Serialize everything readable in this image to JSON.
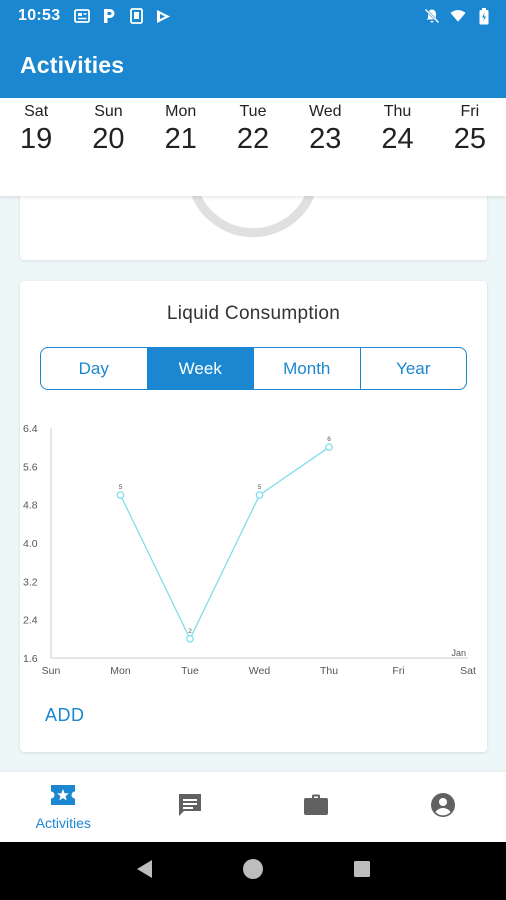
{
  "status_bar": {
    "time": "10:53",
    "left_icons": [
      "news-icon",
      "parking-icon",
      "sim-icon",
      "play-store-icon"
    ],
    "right_icons": [
      "notifications-off-icon",
      "wifi-icon",
      "battery-icon"
    ]
  },
  "app_bar": {
    "title": "Activities"
  },
  "week": {
    "days": [
      {
        "name": "Sat",
        "date": "19"
      },
      {
        "name": "Sun",
        "date": "20"
      },
      {
        "name": "Mon",
        "date": "21"
      },
      {
        "name": "Tue",
        "date": "22"
      },
      {
        "name": "Wed",
        "date": "23"
      },
      {
        "name": "Thu",
        "date": "24"
      },
      {
        "name": "Fri",
        "date": "25"
      }
    ]
  },
  "liquid_card": {
    "title": "Liquid Consumption",
    "tabs": [
      "Day",
      "Week",
      "Month",
      "Year"
    ],
    "selected_tab": "Week",
    "add_label": "ADD"
  },
  "chart_data": {
    "type": "line",
    "categories": [
      "Sun",
      "Mon",
      "Tue",
      "Wed",
      "Thu",
      "Fri",
      "Sat"
    ],
    "series": [
      {
        "values": [
          null,
          5,
          2,
          5,
          6,
          null,
          null
        ]
      }
    ],
    "point_labels": [
      "",
      "5",
      "2",
      "5",
      "6",
      "",
      ""
    ],
    "y_ticks": [
      "6.4",
      "5.6",
      "4.8",
      "4.0",
      "3.2",
      "2.4",
      "1.6"
    ],
    "ylim": [
      1.6,
      6.4
    ],
    "annotation": "Jan",
    "colors": {
      "line": "#80deea",
      "axis": "#cccccc",
      "label": "#555555"
    }
  },
  "bottom_nav": {
    "items": [
      {
        "label": "Activities",
        "icon": "ticket-star-icon",
        "active": true
      },
      {
        "label": "",
        "icon": "chat-icon",
        "active": false
      },
      {
        "label": "",
        "icon": "briefcase-icon",
        "active": false
      },
      {
        "label": "",
        "icon": "account-circle-icon",
        "active": false
      }
    ]
  },
  "colors": {
    "primary": "#1b87d0",
    "background": "#eef7f8",
    "gauge_track": "#e0e0e0",
    "gauge_marker": "#f4511e"
  }
}
